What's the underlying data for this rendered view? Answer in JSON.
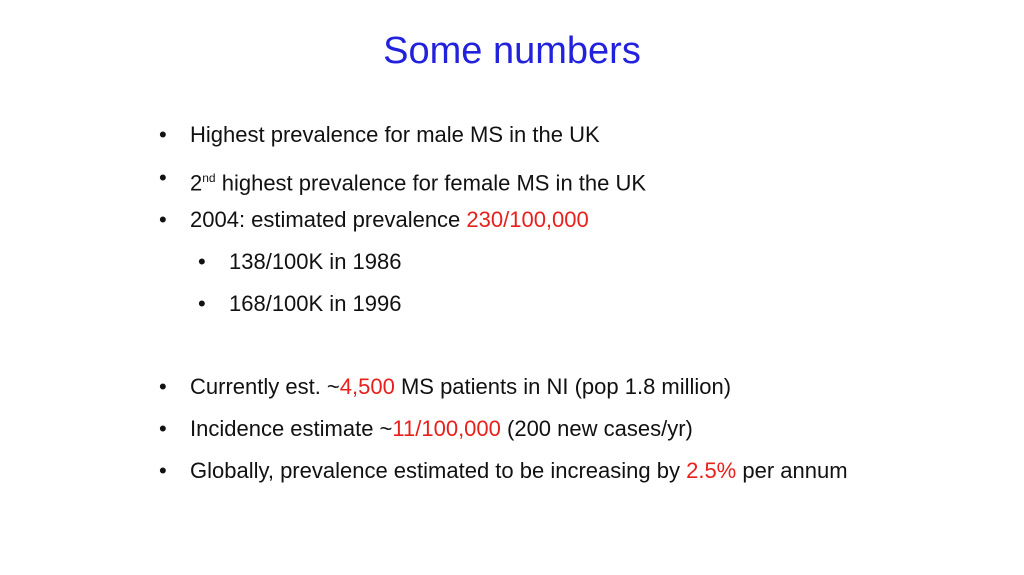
{
  "title": {
    "text": "Some numbers",
    "color": "#2222dd"
  },
  "bullets": [
    {
      "level": 1,
      "parts": [
        {
          "text": "Highest prevalence for male MS in the UK"
        }
      ]
    },
    {
      "level": 1,
      "parts": [
        {
          "text": "2"
        },
        {
          "text": "nd",
          "sup": true
        },
        {
          "text": " highest prevalence for female MS in the UK"
        }
      ]
    },
    {
      "level": 1,
      "parts": [
        {
          "text": "2004: estimated prevalence "
        },
        {
          "text": "230/100,000",
          "color": "#e8201c"
        }
      ]
    },
    {
      "level": 2,
      "parts": [
        {
          "text": "138/100K in 1986"
        }
      ]
    },
    {
      "level": 2,
      "parts": [
        {
          "text": "168/100K in 1996"
        }
      ]
    },
    {
      "level": 1,
      "parts": [
        {
          "text": "Currently est. ~"
        },
        {
          "text": "4,500",
          "color": "#e8201c"
        },
        {
          "text": " MS patients in NI (pop 1.8 million)"
        }
      ]
    },
    {
      "level": 1,
      "parts": [
        {
          "text": "Incidence estimate ~"
        },
        {
          "text": "11/100,000",
          "color": "#e8201c"
        },
        {
          "text": " (200 new cases/yr)"
        }
      ]
    },
    {
      "level": 1,
      "parts": [
        {
          "text": "Globally, prevalence estimated to be increasing by "
        },
        {
          "text": "2.5%",
          "color": "#e8201c"
        },
        {
          "text": " per annum"
        }
      ]
    }
  ]
}
